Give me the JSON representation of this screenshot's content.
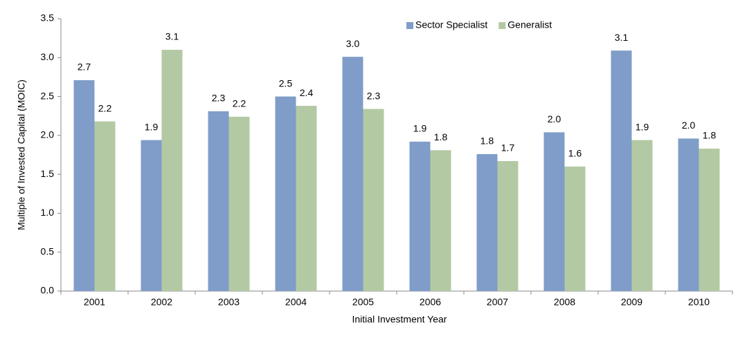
{
  "chart_data": {
    "type": "bar",
    "x_label": "Initial Investment Year",
    "y_label": "Multiple of Invested Capital (MOIC)",
    "categories": [
      "2001",
      "2002",
      "2003",
      "2004",
      "2005",
      "2006",
      "2007",
      "2008",
      "2009",
      "2010"
    ],
    "series": [
      {
        "name": "Sector Specialist",
        "color": "#7f9dc8",
        "values": [
          2.71,
          1.94,
          2.31,
          2.5,
          3.01,
          1.92,
          1.76,
          2.04,
          3.09,
          1.96
        ],
        "value_labels": [
          "2.7",
          "1.9",
          "2.3",
          "2.5",
          "3.0",
          "1.9",
          "1.8",
          "2.0",
          "3.1",
          "2.0"
        ]
      },
      {
        "name": "Generalist",
        "color": "#b3c9a3",
        "values": [
          2.18,
          3.1,
          2.24,
          2.38,
          2.34,
          1.81,
          1.67,
          1.6,
          1.94,
          1.83
        ],
        "value_labels": [
          "2.2",
          "3.1",
          "2.2",
          "2.4",
          "2.3",
          "1.8",
          "1.7",
          "1.6",
          "1.9",
          "1.8"
        ]
      }
    ],
    "ylim": [
      0,
      3.5
    ],
    "yticks": [
      {
        "value": 0,
        "label": "0.0"
      },
      0.5,
      {
        "value": 1,
        "label": "1.0"
      },
      1.5,
      {
        "value": 2,
        "label": "2.0"
      },
      2.5,
      {
        "value": 3,
        "label": "3.0"
      },
      3.5
    ],
    "legend": "top"
  }
}
